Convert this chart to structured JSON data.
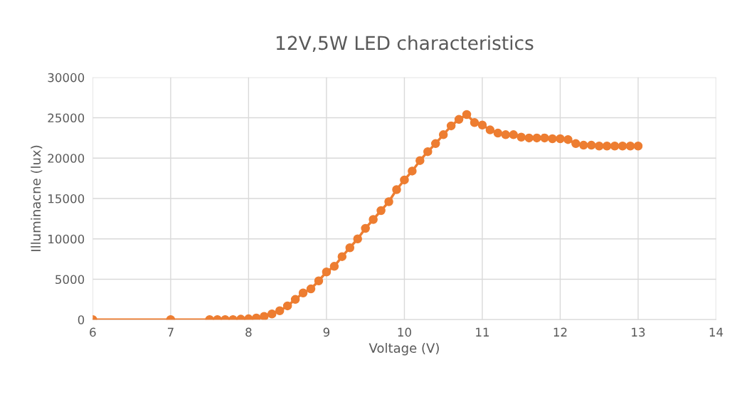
{
  "chart_data": {
    "type": "line",
    "title": "12V,5W LED characteristics",
    "xlabel": "Voltage (V)",
    "ylabel": "Illuminacne (lux)",
    "x": [
      6,
      7,
      7.5,
      7.6,
      7.7,
      7.8,
      7.9,
      8.0,
      8.1,
      8.2,
      8.3,
      8.4,
      8.5,
      8.6,
      8.7,
      8.8,
      8.9,
      9.0,
      9.1,
      9.2,
      9.3,
      9.4,
      9.5,
      9.6,
      9.7,
      9.8,
      9.9,
      10.0,
      10.1,
      10.2,
      10.3,
      10.4,
      10.5,
      10.6,
      10.7,
      10.8,
      10.9,
      11.0,
      11.1,
      11.2,
      11.3,
      11.4,
      11.5,
      11.6,
      11.7,
      11.8,
      11.9,
      12.0,
      12.1,
      12.2,
      12.3,
      12.4,
      12.5,
      12.6,
      12.7,
      12.8,
      12.9,
      13.0
    ],
    "series": [
      {
        "color": "#ed7d31",
        "values": [
          0,
          0,
          0,
          0,
          0,
          0,
          50,
          100,
          200,
          400,
          700,
          1100,
          1700,
          2500,
          3300,
          3800,
          4800,
          5900,
          6600,
          7800,
          8900,
          10000,
          11300,
          12400,
          13500,
          14600,
          16100,
          17300,
          18400,
          19700,
          20800,
          21800,
          22900,
          24000,
          24800,
          25400,
          24400,
          24100,
          23500,
          23100,
          22900,
          22900,
          22600,
          22500,
          22500,
          22500,
          22400,
          22400,
          22300,
          21800,
          21600,
          21600,
          21500,
          21500,
          21500,
          21500,
          21500,
          21500
        ]
      }
    ],
    "xlim": [
      6,
      14
    ],
    "xticks": [
      6,
      7,
      8,
      9,
      10,
      11,
      12,
      13,
      14
    ],
    "ylim": [
      0,
      30000
    ],
    "yticks": [
      0,
      5000,
      10000,
      15000,
      20000,
      25000,
      30000
    ],
    "grid": true,
    "marker": "circle",
    "line_style": "solid"
  }
}
